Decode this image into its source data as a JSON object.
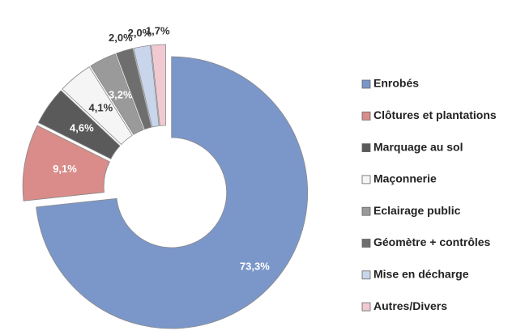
{
  "chart_data": {
    "type": "donut",
    "categories": [
      "Enrobés",
      "Clôtures et plantations",
      "Marquage au sol",
      "Maçonnerie",
      "Eclairage public",
      "Géomètre + contrôles",
      "Mise en décharge",
      "Autres/Divers"
    ],
    "values": [
      73.3,
      9.1,
      4.6,
      4.1,
      3.2,
      2.0,
      2.0,
      1.7
    ],
    "value_labels": [
      "73,3%",
      "9,1%",
      "4,6%",
      "4,1%",
      "3,2%",
      "2,0%",
      "2,0%",
      "1,7%"
    ],
    "colors": [
      "#7b97c9",
      "#d98c8a",
      "#5a5a5a",
      "#f5f5f5",
      "#9a9a9a",
      "#6e6e6e",
      "#c9d5ea",
      "#f1c9d1"
    ],
    "legend": "right"
  }
}
